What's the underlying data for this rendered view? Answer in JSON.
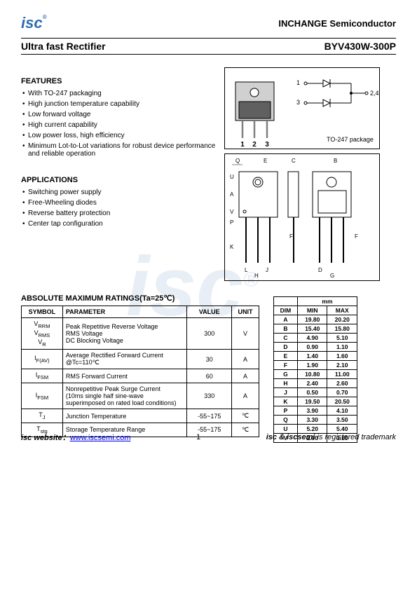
{
  "header": {
    "logo_text": "isc",
    "reg": "®",
    "company": "INCHANGE Semiconductor"
  },
  "title": {
    "left": "Ultra fast Rectifier",
    "right": "BYV430W-300P"
  },
  "features": {
    "heading": "FEATURES",
    "items": [
      "With TO-247 packaging",
      "High junction temperature capability",
      "Low forward voltage",
      "High current capability",
      "Low power loss, high efficiency",
      "Minimum Lot-to-Lot variations for robust device performance and reliable operation"
    ]
  },
  "applications": {
    "heading": "APPLICATIONS",
    "items": [
      "Switching power supply",
      "Free-Wheeling diodes",
      "Reverse battery protection",
      "Center tap configuration"
    ]
  },
  "ratings": {
    "heading": "ABSOLUTE MAXIMUM RATINGS(Ta=25℃)",
    "columns": [
      "SYMBOL",
      "PARAMETER",
      "VALUE",
      "UNIT"
    ],
    "rows": [
      {
        "symbol_html": "V<sub>RRM</sub><br>V<sub>RMS</sub><br>V<sub>R</sub>",
        "param": "Peak Repetitive Reverse Voltage\nRMS Voltage\nDC Blocking Voltage",
        "value": "300",
        "unit": "V"
      },
      {
        "symbol_html": "I<sub>F(AV)</sub>",
        "param": "Average Rectified Forward Current @Tc=110℃",
        "value": "30",
        "unit": "A"
      },
      {
        "symbol_html": "I<sub>FSM</sub>",
        "param": "RMS Forward Current",
        "value": "60",
        "unit": "A"
      },
      {
        "symbol_html": "I<sub>FSM</sub>",
        "param": "Nonrepetitive Peak Surge Current\n(10ms single half sine-wave superimposed on rated load conditions)",
        "value": "330",
        "unit": "A"
      },
      {
        "symbol_html": "T<sub>J</sub>",
        "param": "Junction Temperature",
        "value": "-55~175",
        "unit": "℃"
      },
      {
        "symbol_html": "T<sub>stg</sub>",
        "param": "Storage Temperature Range",
        "value": "-55~175",
        "unit": "℃"
      }
    ]
  },
  "dimensions": {
    "header": "mm",
    "columns": [
      "DIM",
      "MIN",
      "MAX"
    ],
    "rows": [
      {
        "dim": "A",
        "min": "19.80",
        "max": "20.20"
      },
      {
        "dim": "B",
        "min": "15.40",
        "max": "15.80"
      },
      {
        "dim": "C",
        "min": "4.90",
        "max": "5.10"
      },
      {
        "dim": "D",
        "min": "0.90",
        "max": "1.10"
      },
      {
        "dim": "E",
        "min": "1.40",
        "max": "1.60"
      },
      {
        "dim": "F",
        "min": "1.90",
        "max": "2.10"
      },
      {
        "dim": "G",
        "min": "10.80",
        "max": "11.00"
      },
      {
        "dim": "H",
        "min": "2.40",
        "max": "2.60"
      },
      {
        "dim": "J",
        "min": "0.50",
        "max": "0.70"
      },
      {
        "dim": "K",
        "min": "19.50",
        "max": "20.50"
      },
      {
        "dim": "P",
        "min": "3.90",
        "max": "4.10"
      },
      {
        "dim": "Q",
        "min": "3.30",
        "max": "3.50"
      },
      {
        "dim": "U",
        "min": "5.20",
        "max": "5.40"
      },
      {
        "dim": "V",
        "min": "2.90",
        "max": "3.10"
      }
    ]
  },
  "diagram": {
    "pin1": "1",
    "pin2": "2",
    "pin3": "3",
    "node1": "1",
    "node2": "2,4",
    "node3": "3",
    "package_label": "TO-247 package"
  },
  "package_dims": {
    "labels": [
      "Q",
      "E",
      "C",
      "B",
      "U",
      "A",
      "V",
      "P",
      "K",
      "L",
      "F",
      "J",
      "H",
      "D",
      "G"
    ]
  },
  "footer": {
    "website_label": "isc website：",
    "website_url": "www.iscsemi.com",
    "page_num": "1",
    "trademark_prefix": "isc & iscsemi",
    "trademark_suffix": " is registered trademark"
  },
  "styling": {
    "primary_color": "#2e6bb0",
    "text_color": "#000000",
    "watermark_color": "#e8eef5",
    "link_color": "#0000ee",
    "border_color": "#000000",
    "body_font_size": 10,
    "heading_font_size": 11,
    "title_font_size": 14,
    "table_font_size": 9,
    "dim_table_font_size": 8.5
  }
}
